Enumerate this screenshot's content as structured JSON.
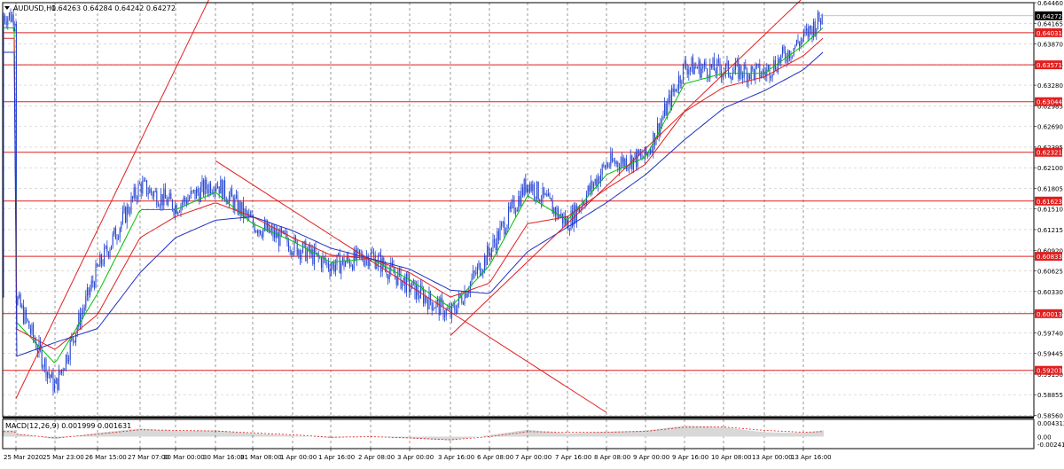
{
  "header": {
    "symbol": "AUDUSD,H1",
    "ohlc": "0.64263 0.64284 0.64242 0.64272"
  },
  "macd_header": "MACD(12,26,9) 0.001999 0.001631",
  "chart_data": [
    {
      "type": "line",
      "title": "AUDUSD,H1",
      "style": "candlestick price chart with moving averages, trendlines and horizontal levels",
      "grid": true,
      "ylim": [
        0.5854,
        0.6446
      ],
      "y_ticks": [
        "0.64460",
        "0.64165",
        "0.63870",
        "0.63575",
        "0.63280",
        "0.62985",
        "0.62690",
        "0.62395",
        "0.62100",
        "0.61805",
        "0.61510",
        "0.61215",
        "0.60920",
        "0.60625",
        "0.60330",
        "0.60035",
        "0.59740",
        "0.59445",
        "0.59150",
        "0.58855",
        "0.58560"
      ],
      "x_ticks": [
        "25 Mar 2020",
        "25 Mar 23:00",
        "26 Mar 15:00",
        "27 Mar 07:00",
        "30 Mar 00:00",
        "30 Mar 16:00",
        "31 Mar 08:00",
        "1 Apr 00:00",
        "1 Apr 16:00",
        "2 Apr 08:00",
        "3 Apr 00:00",
        "3 Apr 16:00",
        "6 Apr 08:00",
        "7 Apr 00:00",
        "7 Apr 16:00",
        "8 Apr 08:00",
        "9 Apr 00:00",
        "9 Apr 16:00",
        "10 Apr 08:00",
        "13 Apr 00:00",
        "13 Apr 16:00"
      ],
      "levels": [
        "0.64031",
        "0.63571",
        "0.63044",
        "0.62321",
        "0.61623",
        "0.60833",
        "0.60013",
        "0.59203"
      ],
      "last_price": "0.64272",
      "series": [
        {
          "type": "candlestick",
          "x": [
            "25 Mar 2020",
            "25 Mar 23:00",
            "26 Mar 15:00",
            "27 Mar 07:00",
            "30 Mar 00:00",
            "30 Mar 16:00",
            "31 Mar 08:00",
            "1 Apr 00:00",
            "1 Apr 16:00",
            "2 Apr 08:00",
            "3 Apr 00:00",
            "3 Apr 16:00",
            "6 Apr 08:00",
            "7 Apr 00:00",
            "7 Apr 16:00",
            "8 Apr 08:00",
            "9 Apr 00:00",
            "9 Apr 16:00",
            "10 Apr 08:00",
            "13 Apr 00:00",
            "13 Apr 16:00",
            "13 Apr 22:00"
          ],
          "close": [
            0.6025,
            0.5895,
            0.6065,
            0.6185,
            0.6155,
            0.619,
            0.613,
            0.61,
            0.607,
            0.6085,
            0.604,
            0.6,
            0.609,
            0.619,
            0.613,
            0.6215,
            0.6225,
            0.6355,
            0.635,
            0.6345,
            0.6395,
            0.6427
          ]
        },
        {
          "type": "line",
          "color": "#00c000",
          "values": [
            0.599,
            0.593,
            0.603,
            0.615,
            0.615,
            0.6175,
            0.613,
            0.6105,
            0.6075,
            0.608,
            0.605,
            0.601,
            0.607,
            0.617,
            0.6135,
            0.62,
            0.6225,
            0.633,
            0.6345,
            0.6345,
            0.6385,
            0.641
          ]
        },
        {
          "type": "line",
          "color": "#e02020",
          "values": [
            0.598,
            0.595,
            0.6,
            0.611,
            0.614,
            0.616,
            0.614,
            0.611,
            0.6085,
            0.608,
            0.606,
            0.6025,
            0.6045,
            0.613,
            0.614,
            0.618,
            0.6215,
            0.629,
            0.6325,
            0.634,
            0.637,
            0.6395
          ]
        },
        {
          "type": "line",
          "color": "#2030c0",
          "values": [
            0.594,
            0.596,
            0.598,
            0.606,
            0.611,
            0.6135,
            0.614,
            0.612,
            0.6095,
            0.608,
            0.6065,
            0.6035,
            0.603,
            0.609,
            0.6125,
            0.616,
            0.62,
            0.625,
            0.6295,
            0.632,
            0.635,
            0.6375
          ]
        }
      ],
      "trendlines": [
        {
          "color": "#e02020",
          "from": [
            "25 Mar 2020",
            0.588
          ],
          "to": [
            "31 Mar 08:00",
            0.658
          ]
        },
        {
          "color": "#e02020",
          "from": [
            "30 Mar 16:00",
            0.622
          ],
          "to": [
            "8 Apr 08:00",
            0.586
          ]
        },
        {
          "color": "#e02020",
          "from": [
            "3 Apr 16:00",
            0.597
          ],
          "to": [
            "13 Apr 22:00",
            0.648
          ]
        }
      ]
    },
    {
      "type": "bar",
      "title": "MACD(12,26,9) 0.001999 0.001631",
      "y_ticks": [
        "0.004312",
        "0.00",
        "-0.00241"
      ],
      "ylim": [
        -0.0038,
        0.0055
      ],
      "x": [
        "25 Mar 2020",
        "25 Mar 23:00",
        "26 Mar 15:00",
        "27 Mar 07:00",
        "30 Mar 00:00",
        "30 Mar 16:00",
        "31 Mar 08:00",
        "1 Apr 00:00",
        "1 Apr 16:00",
        "2 Apr 08:00",
        "3 Apr 00:00",
        "3 Apr 16:00",
        "6 Apr 08:00",
        "7 Apr 00:00",
        "7 Apr 16:00",
        "8 Apr 08:00",
        "9 Apr 00:00",
        "9 Apr 16:00",
        "10 Apr 08:00",
        "13 Apr 00:00",
        "13 Apr 16:00",
        "13 Apr 22:00"
      ],
      "values": [
        0.001,
        -0.0008,
        0.0012,
        0.0026,
        0.0018,
        0.002,
        0.001,
        0.0004,
        -0.0004,
        0.0001,
        -0.0006,
        -0.0012,
        0.0005,
        0.0022,
        0.001,
        0.0016,
        0.0019,
        0.0035,
        0.003,
        0.0014,
        0.0012,
        0.002
      ],
      "signal": [
        0.0008,
        -0.0004,
        0.0008,
        0.0022,
        0.002,
        0.0018,
        0.0012,
        0.0006,
        -0.0002,
        0.0,
        -0.0004,
        -0.001,
        0.0,
        0.0016,
        0.0014,
        0.0014,
        0.0017,
        0.003,
        0.0031,
        0.002,
        0.0014,
        0.0016
      ]
    }
  ]
}
